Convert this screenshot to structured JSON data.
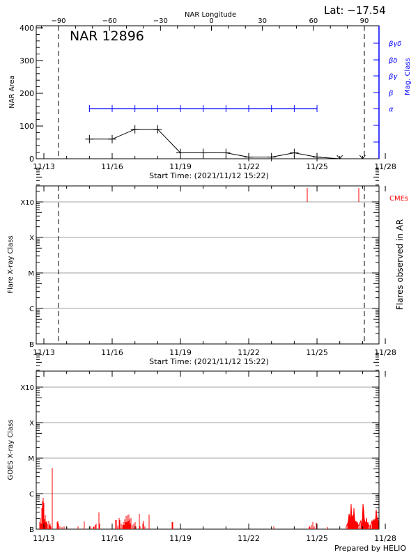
{
  "header": {
    "lat_label": "Lat: −17.54",
    "footer_credit": "Prepared by HELIO"
  },
  "colors": {
    "axis": "#000000",
    "mag_class": "#0000ff",
    "flare_red": "#ff0000",
    "grid": "#a0a0a0"
  },
  "x_axis": {
    "date_ticks": [
      "11/13",
      "11/16",
      "11/19",
      "11/22",
      "11/25",
      "11/28"
    ],
    "start_time_label": "Start Time: (2021/11/12 15:22)"
  },
  "chart_data": [
    {
      "type": "line",
      "id": "nar-area",
      "title": "NAR 12896",
      "xlabel": "Start Time: (2021/11/12 15:22)",
      "ylabel": "NAR Area",
      "ylabel_right": "Mag. Class",
      "top_axis_label": "NAR Longitude",
      "top_axis_ticks": [
        "−90",
        "−60",
        "−30",
        "0",
        "30",
        "60",
        "90"
      ],
      "ylim": [
        0,
        400
      ],
      "y_ticks": [
        "0",
        "100",
        "200",
        "300",
        "400"
      ],
      "mag_class_ticks": [
        "α",
        "β",
        "βγ",
        "βδ",
        "βγδ"
      ],
      "limb_markers": [
        "11/13.6",
        "11/27.1"
      ],
      "series": [
        {
          "name": "NAR Area",
          "color": "#000000",
          "x": [
            "11/15",
            "11/16",
            "11/17",
            "11/18",
            "11/19",
            "11/20",
            "11/21",
            "11/22",
            "11/23",
            "11/24",
            "11/25",
            "11/26",
            "11/27"
          ],
          "values": [
            60,
            60,
            90,
            90,
            18,
            18,
            18,
            5,
            5,
            18,
            5,
            0,
            0
          ],
          "note": "last two points drawn as arrows (below zero / no data)"
        },
        {
          "name": "Mag. Class",
          "color": "#0000ff",
          "x": [
            "11/15",
            "11/16",
            "11/17",
            "11/18",
            "11/19",
            "11/20",
            "11/21",
            "11/22",
            "11/23",
            "11/24",
            "11/25"
          ],
          "values": [
            "α",
            "α",
            "α",
            "α",
            "α",
            "α",
            "α",
            "α",
            "α",
            "α",
            "α"
          ]
        }
      ]
    },
    {
      "type": "bar",
      "id": "flares",
      "ylabel": "Flare X-ray Class",
      "ylabel_right": "Flares observed in AR",
      "xlabel": "Start Time: (2021/11/12 15:22)",
      "y_ticks": [
        "B",
        "C",
        "M",
        "X",
        "X10"
      ],
      "legend": "CMEs",
      "cme_events": [
        "11/24.6",
        "11/26.9"
      ],
      "flare_events": []
    },
    {
      "type": "bar",
      "id": "goes",
      "ylabel": "GOES X-ray Class",
      "y_ticks": [
        "B",
        "C",
        "M",
        "X",
        "X10"
      ],
      "x_ticks": [
        "11/13",
        "11/16",
        "11/19",
        "11/22",
        "11/25",
        "11/28"
      ],
      "series": [
        {
          "name": "GOES X-ray flux",
          "color": "#ff0000",
          "peak_class": "C1.3",
          "peak_time": "11/13.4",
          "description": "Background mostly B-class; spike near C at 11/13.4; bursts 11/13, 11/15–11/17, and continuous B-level activity 11/26–11/28"
        }
      ]
    }
  ]
}
